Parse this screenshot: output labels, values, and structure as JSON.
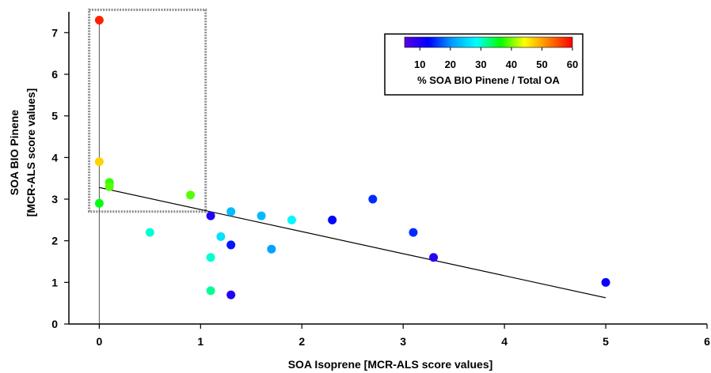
{
  "chart_data": {
    "type": "scatter",
    "xlabel": "SOA  Isoprene  [MCR-ALS score values]",
    "ylabel_line1": "SOA BIO Pinene",
    "ylabel_line2": "[MCR-ALS score values]",
    "xlim": [
      -0.3,
      6
    ],
    "ylim": [
      0,
      7.5
    ],
    "x_ticks": [
      0,
      1,
      2,
      3,
      4,
      5,
      6
    ],
    "y_ticks": [
      0,
      1,
      2,
      3,
      4,
      5,
      6,
      7
    ],
    "grid": false,
    "colorbar": {
      "label": "% SOA BIO Pinene / Total OA",
      "min": 5,
      "max": 60,
      "ticks": [
        10,
        20,
        30,
        40,
        50,
        60
      ],
      "colormap": [
        "#5a00e0",
        "#0000ff",
        "#00a0ff",
        "#00ffff",
        "#00ff00",
        "#ffff00",
        "#ff8000",
        "#ff0000"
      ]
    },
    "points": [
      {
        "x": 0.0,
        "y": 7.3,
        "c": 58
      },
      {
        "x": 0.0,
        "y": 3.9,
        "c": 47
      },
      {
        "x": 0.0,
        "y": 2.9,
        "c": 36
      },
      {
        "x": 0.1,
        "y": 3.4,
        "c": 38
      },
      {
        "x": 0.1,
        "y": 3.3,
        "c": 39
      },
      {
        "x": 0.9,
        "y": 3.1,
        "c": 39
      },
      {
        "x": 0.5,
        "y": 2.2,
        "c": 30
      },
      {
        "x": 1.1,
        "y": 2.6,
        "c": 10
      },
      {
        "x": 1.1,
        "y": 1.6,
        "c": 30
      },
      {
        "x": 1.1,
        "y": 0.8,
        "c": 32
      },
      {
        "x": 1.2,
        "y": 2.1,
        "c": 26
      },
      {
        "x": 1.3,
        "y": 2.7,
        "c": 23
      },
      {
        "x": 1.3,
        "y": 1.9,
        "c": 14
      },
      {
        "x": 1.3,
        "y": 0.7,
        "c": 10
      },
      {
        "x": 1.6,
        "y": 2.6,
        "c": 23
      },
      {
        "x": 1.7,
        "y": 1.8,
        "c": 21
      },
      {
        "x": 1.9,
        "y": 2.5,
        "c": 28
      },
      {
        "x": 2.3,
        "y": 2.5,
        "c": 13
      },
      {
        "x": 2.7,
        "y": 3.0,
        "c": 15
      },
      {
        "x": 3.1,
        "y": 2.2,
        "c": 15
      },
      {
        "x": 3.3,
        "y": 1.6,
        "c": 9
      },
      {
        "x": 5.0,
        "y": 1.0,
        "c": 12
      }
    ],
    "regression_line": {
      "x": [
        0,
        5
      ],
      "y": [
        3.28,
        0.63
      ]
    },
    "vertical_line_x": 0,
    "highlight_box": {
      "x": [
        -0.1,
        1.05
      ],
      "y": [
        2.7,
        7.55
      ]
    }
  }
}
